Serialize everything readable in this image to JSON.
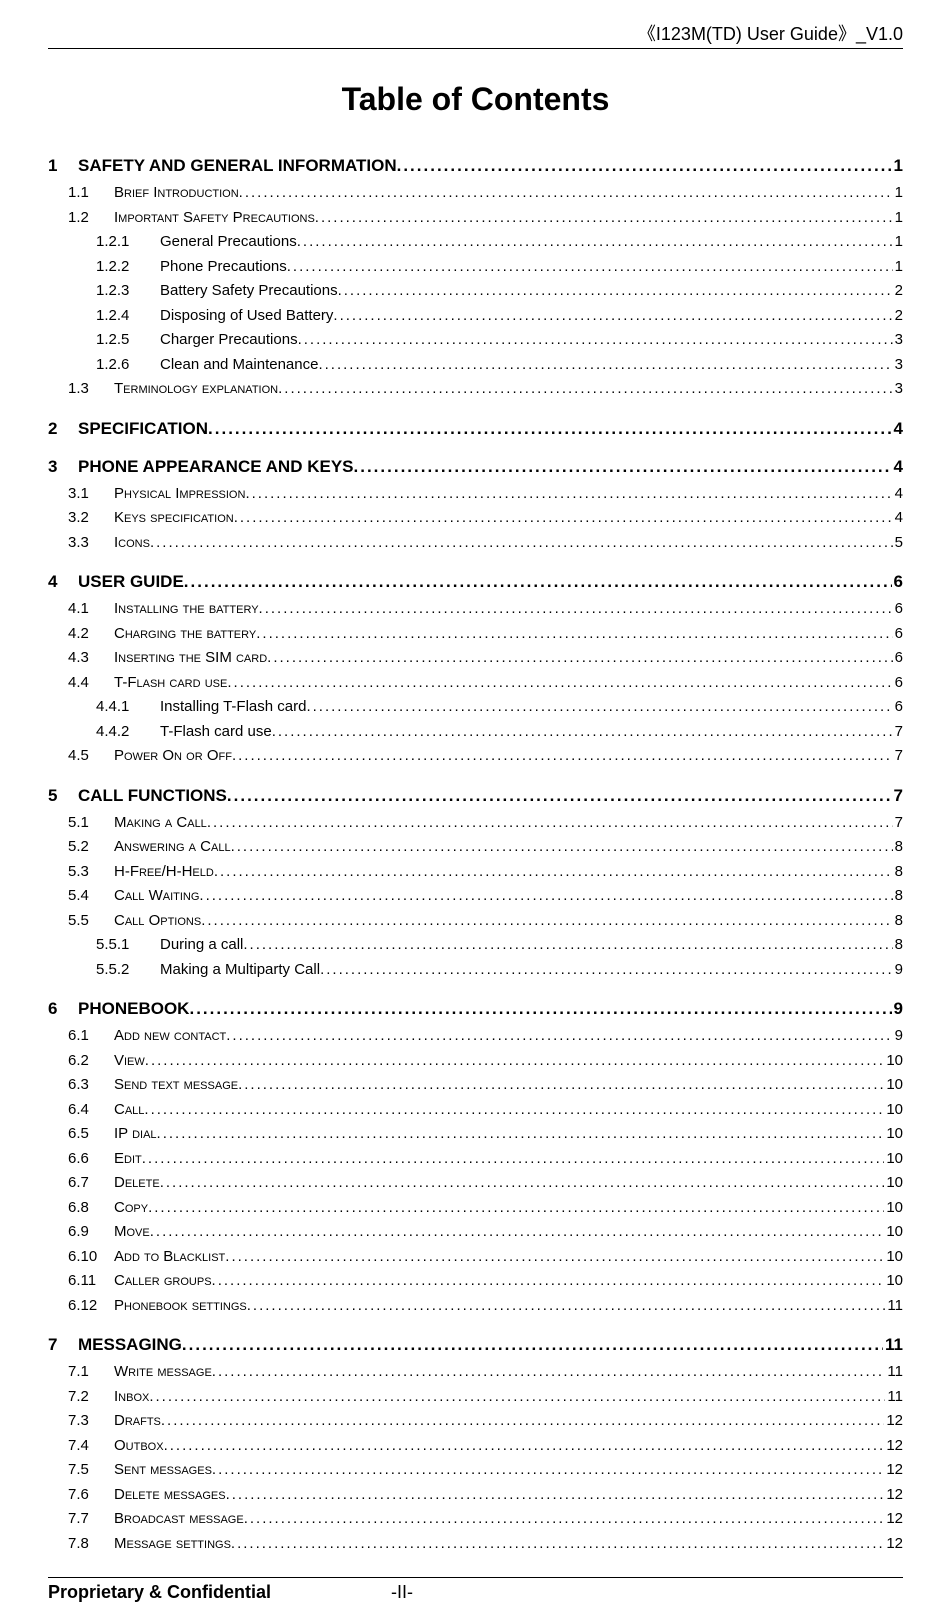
{
  "header": {
    "text": "《I123M(TD)  User Guide》_V1.0"
  },
  "title": "Table of Contents",
  "footer": {
    "left": "Proprietary & Confidential",
    "page": "-II-"
  },
  "styles": {
    "lvl1_fontsize": 17,
    "lvl1_bold": true,
    "lvl2_fontsize": 15,
    "lvl2_smallcaps": true,
    "lvl3_fontsize": 15,
    "text_color": "#000000",
    "background_color": "#ffffff",
    "title_fontsize": 32
  },
  "toc": [
    {
      "level": 1,
      "num": "1",
      "label": "SAFETY AND GENERAL INFORMATION",
      "page": "1"
    },
    {
      "level": 2,
      "num": "1.1",
      "label": "Brief Introduction",
      "page": "1"
    },
    {
      "level": 2,
      "num": "1.2",
      "label": "Important Safety Precautions",
      "page": "1"
    },
    {
      "level": 3,
      "num": "1.2.1",
      "label": "General Precautions",
      "page": "1"
    },
    {
      "level": 3,
      "num": "1.2.2",
      "label": "Phone Precautions",
      "page": "1"
    },
    {
      "level": 3,
      "num": "1.2.3",
      "label": "Battery Safety Precautions",
      "page": "2"
    },
    {
      "level": 3,
      "num": "1.2.4",
      "label": "Disposing of Used Battery",
      "page": "2"
    },
    {
      "level": 3,
      "num": "1.2.5",
      "label": "Charger Precautions",
      "page": "3"
    },
    {
      "level": 3,
      "num": "1.2.6",
      "label": "Clean and Maintenance",
      "page": "3"
    },
    {
      "level": 2,
      "num": "1.3",
      "label": "Terminology explanation",
      "page": "3"
    },
    {
      "level": 1,
      "num": "2",
      "label": "SPECIFICATION",
      "page": "4"
    },
    {
      "level": 1,
      "num": "3",
      "label": "PHONE APPEARANCE AND KEYS",
      "page": "4"
    },
    {
      "level": 2,
      "num": "3.1",
      "label": "Physical Impression",
      "page": "4"
    },
    {
      "level": 2,
      "num": "3.2",
      "label": "Keys specification",
      "page": "4"
    },
    {
      "level": 2,
      "num": "3.3",
      "label": "Icons",
      "page": "5"
    },
    {
      "level": 1,
      "num": "4",
      "label": "USER GUIDE",
      "page": "6"
    },
    {
      "level": 2,
      "num": "4.1",
      "label": "Installing the battery",
      "page": "6"
    },
    {
      "level": 2,
      "num": "4.2",
      "label": "Charging the battery",
      "page": "6"
    },
    {
      "level": 2,
      "num": "4.3",
      "label": "Inserting the SIM card",
      "page": "6"
    },
    {
      "level": 2,
      "num": "4.4",
      "label": "T-Flash card use",
      "page": "6"
    },
    {
      "level": 3,
      "num": "4.4.1",
      "label": "Installing T-Flash card",
      "page": "6"
    },
    {
      "level": 3,
      "num": "4.4.2",
      "label": "T-Flash card use",
      "page": "7"
    },
    {
      "level": 2,
      "num": "4.5",
      "label": "Power On or Off",
      "page": "7"
    },
    {
      "level": 1,
      "num": "5",
      "label": "CALL FUNCTIONS",
      "page": "7"
    },
    {
      "level": 2,
      "num": "5.1",
      "label": "Making a Call",
      "page": "7"
    },
    {
      "level": 2,
      "num": "5.2",
      "label": "Answering a Call",
      "page": "8"
    },
    {
      "level": 2,
      "num": "5.3",
      "label": "H-Free/H-Held",
      "page": "8"
    },
    {
      "level": 2,
      "num": "5.4",
      "label": "Call Waiting",
      "page": "8"
    },
    {
      "level": 2,
      "num": "5.5",
      "label": "Call Options",
      "page": "8"
    },
    {
      "level": 3,
      "num": "5.5.1",
      "label": "During a call",
      "page": "8"
    },
    {
      "level": 3,
      "num": "5.5.2",
      "label": "Making a Multiparty Call",
      "page": "9"
    },
    {
      "level": 1,
      "num": "6",
      "label": "PHONEBOOK",
      "page": "9"
    },
    {
      "level": 2,
      "num": "6.1",
      "label": "Add new contact",
      "page": "9"
    },
    {
      "level": 2,
      "num": "6.2",
      "label": "View",
      "page": "10"
    },
    {
      "level": 2,
      "num": "6.3",
      "label": "Send text message",
      "page": "10"
    },
    {
      "level": 2,
      "num": "6.4",
      "label": "Call",
      "page": "10"
    },
    {
      "level": 2,
      "num": "6.5",
      "label": "IP dial",
      "page": "10"
    },
    {
      "level": 2,
      "num": "6.6",
      "label": "Edit",
      "page": "10"
    },
    {
      "level": 2,
      "num": "6.7",
      "label": "Delete",
      "page": "10"
    },
    {
      "level": 2,
      "num": "6.8",
      "label": "Copy",
      "page": "10"
    },
    {
      "level": 2,
      "num": "6.9",
      "label": "Move",
      "page": "10"
    },
    {
      "level": 2,
      "num": "6.10",
      "label": "Add to Blacklist",
      "page": "10"
    },
    {
      "level": 2,
      "num": "6.11",
      "label": "Caller groups",
      "page": "10"
    },
    {
      "level": 2,
      "num": "6.12",
      "label": "Phonebook settings",
      "page": "11"
    },
    {
      "level": 1,
      "num": "7",
      "label": "MESSAGING",
      "page": "11"
    },
    {
      "level": 2,
      "num": "7.1",
      "label": "Write message",
      "page": "11"
    },
    {
      "level": 2,
      "num": "7.2",
      "label": "Inbox",
      "page": "11"
    },
    {
      "level": 2,
      "num": "7.3",
      "label": "Drafts",
      "page": "12"
    },
    {
      "level": 2,
      "num": "7.4",
      "label": "Outbox",
      "page": "12"
    },
    {
      "level": 2,
      "num": "7.5",
      "label": "Sent messages",
      "page": "12"
    },
    {
      "level": 2,
      "num": "7.6",
      "label": "Delete messages",
      "page": "12"
    },
    {
      "level": 2,
      "num": "7.7",
      "label": "Broadcast message",
      "page": "12"
    },
    {
      "level": 2,
      "num": "7.8",
      "label": "Message settings",
      "page": "12"
    }
  ]
}
